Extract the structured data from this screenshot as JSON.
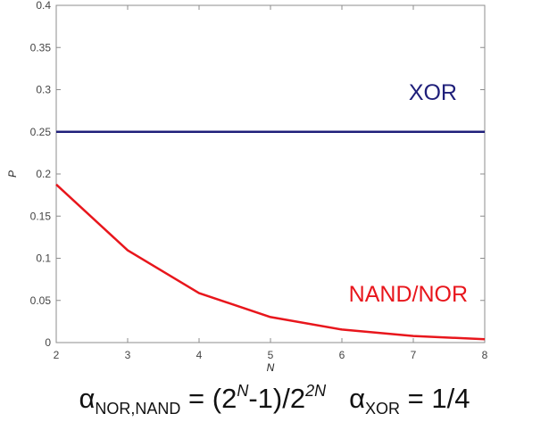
{
  "chart_data": {
    "type": "line",
    "xlabel": "N",
    "ylabel": "P",
    "x": [
      2,
      3,
      4,
      5,
      6,
      7,
      8
    ],
    "xlim": [
      2,
      8
    ],
    "ylim": [
      0,
      0.4
    ],
    "xticks": [
      "2",
      "3",
      "4",
      "5",
      "6",
      "7",
      "8"
    ],
    "yticks": [
      "0",
      "0.05",
      "0.1",
      "0.15",
      "0.2",
      "0.25",
      "0.3",
      "0.35",
      "0.4"
    ],
    "grid": false,
    "series": [
      {
        "name": "XOR",
        "color": "#1f1f7a",
        "values": [
          0.25,
          0.25,
          0.25,
          0.25,
          0.25,
          0.25,
          0.25
        ]
      },
      {
        "name": "NAND/NOR",
        "color": "#e8161c",
        "values": [
          0.1875,
          0.1094,
          0.0586,
          0.0303,
          0.0154,
          0.0078,
          0.0039
        ]
      }
    ]
  },
  "formula": {
    "alpha": "α",
    "sub1": "NOR,NAND",
    "eq1": " = (2",
    "sup1": "N",
    "mid1": "-1)/2",
    "sup2": "2N",
    "sub2": "XOR",
    "eq2": " = 1/4"
  }
}
